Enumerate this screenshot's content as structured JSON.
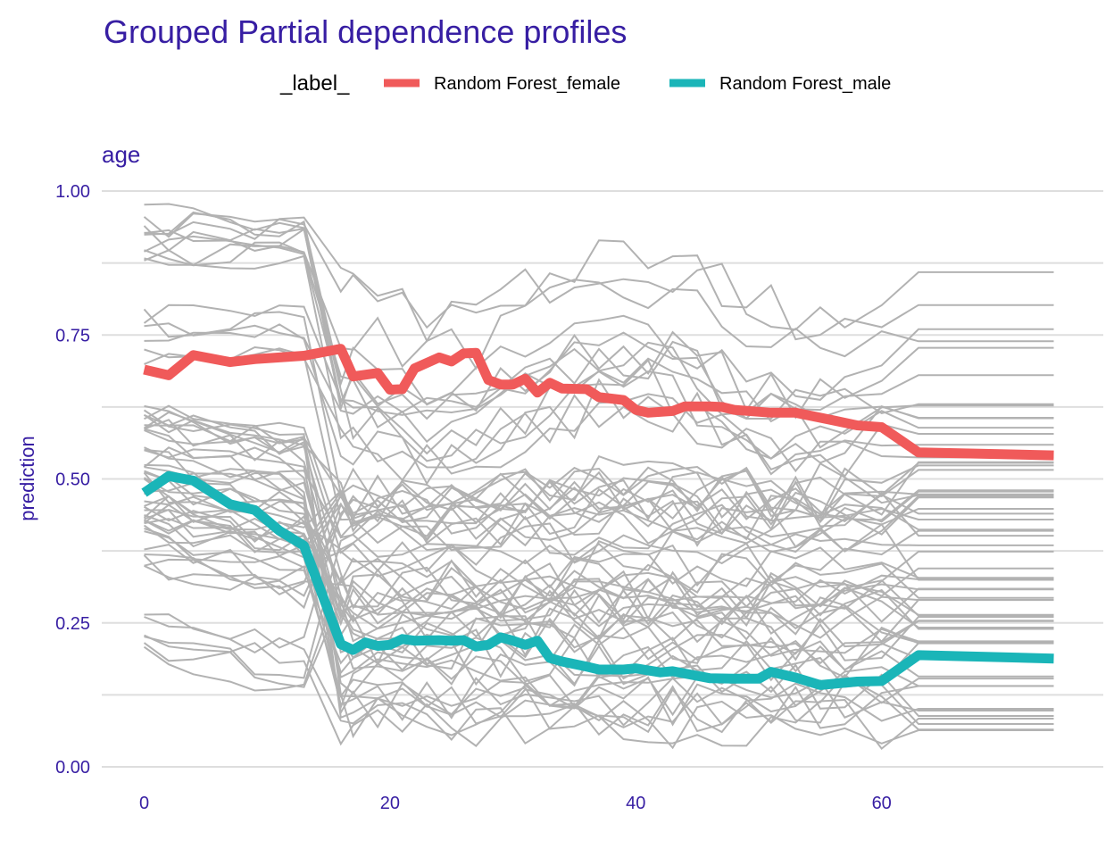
{
  "chart_data": {
    "type": "line",
    "title": "Grouped Partial dependence profiles",
    "facet_label": "age",
    "xlabel": "",
    "ylabel": "prediction",
    "legend": {
      "title": "_label_",
      "position": "top",
      "entries": [
        {
          "name": "Random Forest_female",
          "color": "#f05a5a"
        },
        {
          "name": "Random Forest_male",
          "color": "#1ab5b8"
        }
      ]
    },
    "xlim": [
      -3,
      77
    ],
    "ylim": [
      0,
      1
    ],
    "x_ticks": [
      0,
      20,
      40,
      60
    ],
    "y_ticks": [
      0,
      0.25,
      0.5,
      0.75,
      1.0
    ],
    "y_tick_labels": [
      "0.00",
      "0.25",
      "0.50",
      "0.75",
      "1.00"
    ],
    "grid": true,
    "series": [
      {
        "name": "Random Forest_female",
        "color": "#f05a5a",
        "x": [
          0,
          2,
          4,
          7,
          9,
          11,
          13,
          16,
          17,
          19,
          20,
          21,
          22,
          24,
          25,
          26,
          27,
          28,
          29,
          30,
          31,
          32,
          33,
          34,
          36,
          37,
          39,
          40,
          41,
          43,
          44,
          46,
          47,
          48,
          51,
          53,
          56,
          58,
          60,
          63,
          74
        ],
        "values": [
          0.69,
          0.68,
          0.715,
          0.703,
          0.708,
          0.711,
          0.714,
          0.726,
          0.678,
          0.684,
          0.655,
          0.656,
          0.692,
          0.711,
          0.704,
          0.718,
          0.719,
          0.672,
          0.664,
          0.664,
          0.674,
          0.65,
          0.667,
          0.657,
          0.656,
          0.642,
          0.637,
          0.62,
          0.615,
          0.618,
          0.626,
          0.626,
          0.625,
          0.62,
          0.615,
          0.615,
          0.602,
          0.593,
          0.59,
          0.546,
          0.541
        ]
      },
      {
        "name": "Random Forest_male",
        "color": "#1ab5b8",
        "x": [
          0,
          2,
          4,
          7,
          9,
          11,
          13,
          16,
          17,
          18,
          19,
          20,
          21,
          22,
          24,
          25,
          26,
          27,
          28,
          29,
          30,
          31,
          32,
          33,
          34,
          36,
          37,
          39,
          40,
          42,
          43,
          44,
          46,
          48,
          50,
          51,
          53,
          55,
          58,
          60,
          63,
          74
        ],
        "values": [
          0.476,
          0.505,
          0.497,
          0.456,
          0.446,
          0.41,
          0.384,
          0.213,
          0.203,
          0.216,
          0.21,
          0.212,
          0.222,
          0.219,
          0.22,
          0.219,
          0.22,
          0.209,
          0.212,
          0.225,
          0.219,
          0.212,
          0.219,
          0.189,
          0.183,
          0.174,
          0.169,
          0.169,
          0.171,
          0.164,
          0.166,
          0.162,
          0.154,
          0.153,
          0.153,
          0.165,
          0.155,
          0.142,
          0.148,
          0.149,
          0.194,
          0.188
        ]
      }
    ]
  }
}
